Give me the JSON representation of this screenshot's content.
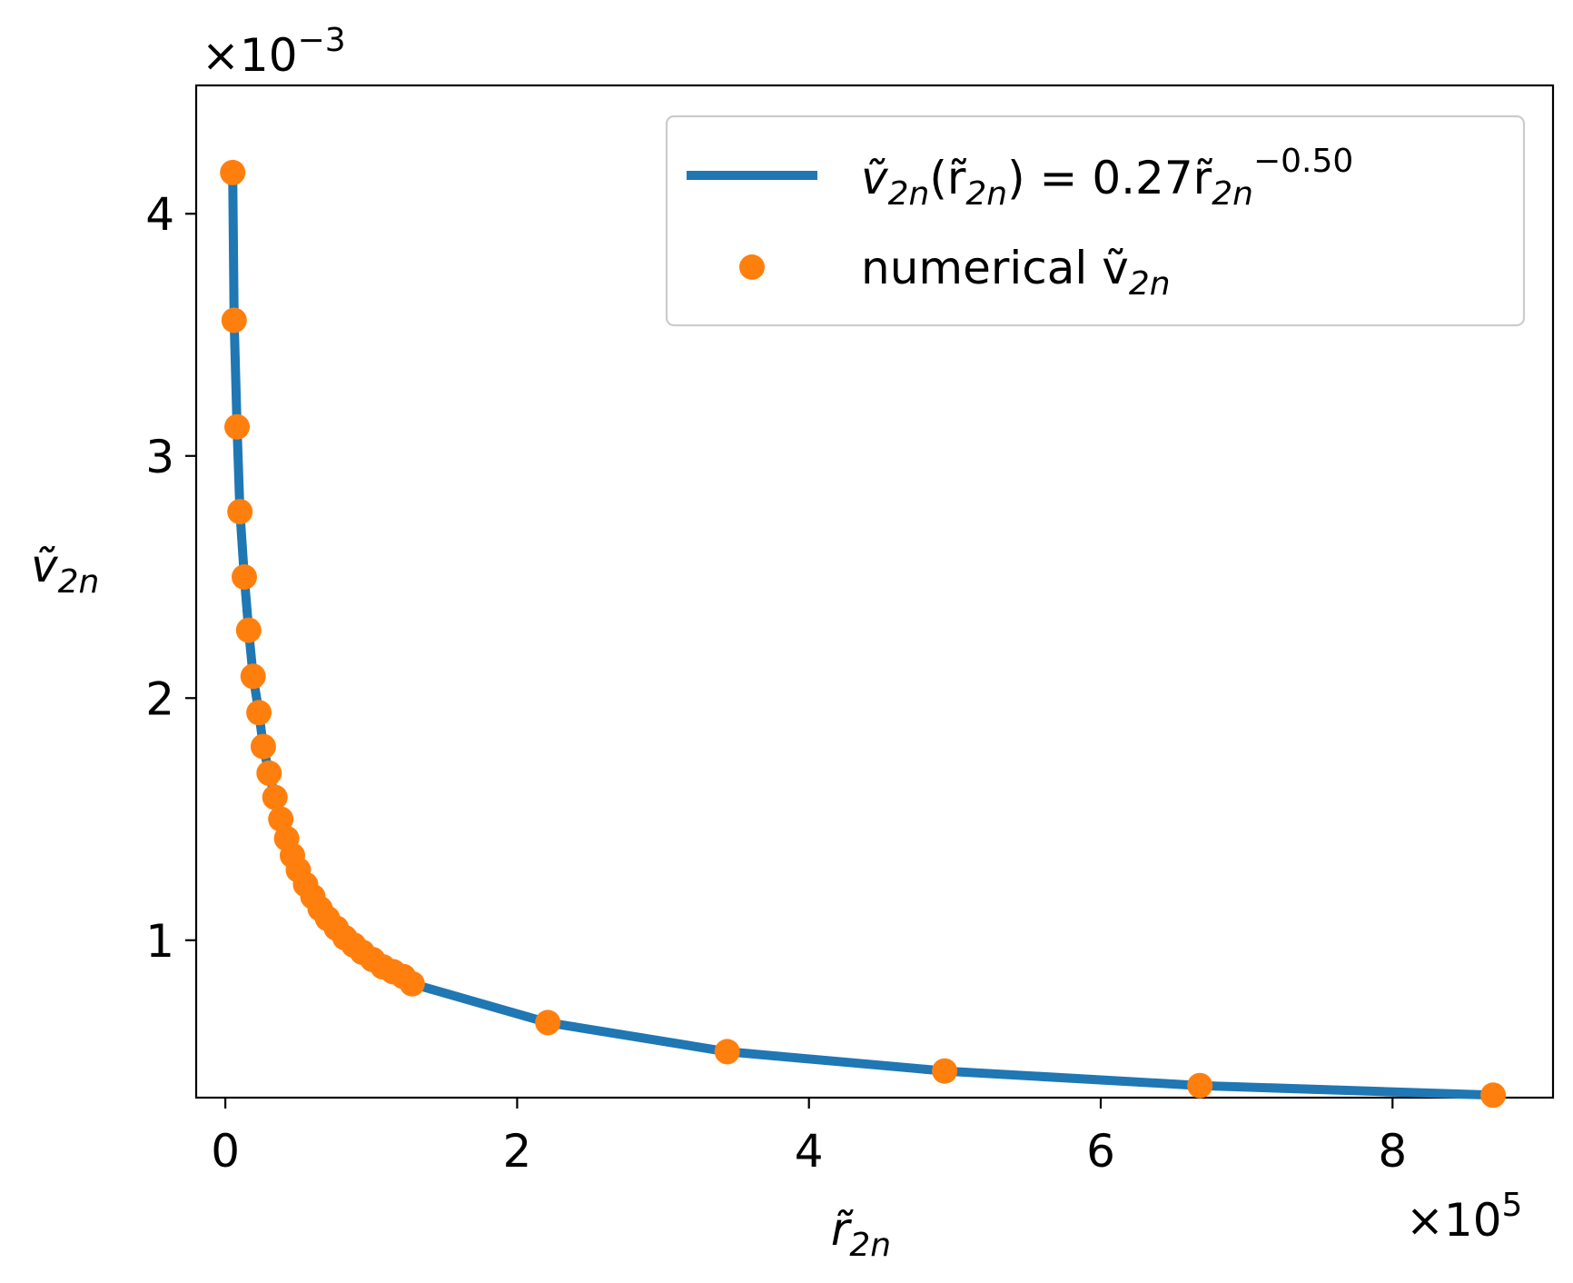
{
  "colors": {
    "fit_line": "#1f77b4",
    "points": "#ff7f0e",
    "axes": "#000000",
    "legend_border": "#cccccc",
    "background": "#ffffff"
  },
  "chart_data": {
    "type": "line",
    "title": "",
    "xlabel": "r̃",
    "xlabel_sub": "2n",
    "ylabel": "ṽ",
    "ylabel_sub": "2n",
    "x_offset_text": "×10",
    "x_offset_exp": "5",
    "y_offset_text": "×10",
    "y_offset_exp": "−3",
    "x_scale_factor": 100000,
    "y_scale_factor": 0.001,
    "xlim": [
      -0.2,
      9.1
    ],
    "ylim": [
      0.35,
      4.53
    ],
    "xticks": [
      0,
      2,
      4,
      6,
      8
    ],
    "xtick_labels": [
      "0",
      "2",
      "4",
      "6",
      "8"
    ],
    "yticks": [
      1,
      2,
      3,
      4
    ],
    "ytick_labels": [
      "1",
      "2",
      "3",
      "4"
    ],
    "grid": false,
    "legend_position": "top-right",
    "series": [
      {
        "name": "ṽ2n(r̃2n) = 0.27r̃2n−0.50",
        "legend_parts": [
          "ṽ",
          "2n",
          "(r̃",
          "2n",
          ") = 0.27r̃",
          "2n",
          "−0.50"
        ],
        "kind": "line",
        "color": "#1f77b4",
        "x": [
          0.05,
          0.06,
          0.08,
          0.1,
          0.13,
          0.16,
          0.19,
          0.23,
          0.26,
          0.3,
          0.34,
          0.38,
          0.42,
          0.46,
          0.5,
          0.55,
          0.6,
          0.65,
          0.7,
          0.76,
          0.82,
          0.88,
          0.94,
          1.01,
          1.08,
          1.15,
          1.22,
          1.28,
          2.21,
          3.44,
          4.93,
          6.68,
          8.69
        ],
        "y": [
          4.17,
          3.56,
          3.12,
          2.77,
          2.5,
          2.28,
          2.09,
          1.94,
          1.8,
          1.69,
          1.59,
          1.5,
          1.42,
          1.35,
          1.29,
          1.23,
          1.18,
          1.13,
          1.09,
          1.05,
          1.01,
          0.98,
          0.95,
          0.92,
          0.89,
          0.87,
          0.85,
          0.82,
          0.66,
          0.54,
          0.46,
          0.4,
          0.36
        ]
      },
      {
        "name": "numerical ṽ2n",
        "legend_parts": [
          "numerical ṽ",
          "2n"
        ],
        "kind": "scatter",
        "color": "#ff7f0e",
        "x": [
          0.05,
          0.06,
          0.08,
          0.1,
          0.13,
          0.16,
          0.19,
          0.23,
          0.26,
          0.3,
          0.34,
          0.38,
          0.42,
          0.46,
          0.5,
          0.55,
          0.6,
          0.65,
          0.7,
          0.76,
          0.82,
          0.88,
          0.94,
          1.01,
          1.08,
          1.15,
          1.22,
          1.28,
          2.21,
          3.44,
          4.93,
          6.68,
          8.69
        ],
        "y": [
          4.17,
          3.56,
          3.12,
          2.77,
          2.5,
          2.28,
          2.09,
          1.94,
          1.8,
          1.69,
          1.59,
          1.5,
          1.42,
          1.35,
          1.29,
          1.23,
          1.18,
          1.13,
          1.09,
          1.05,
          1.01,
          0.98,
          0.95,
          0.92,
          0.89,
          0.87,
          0.85,
          0.82,
          0.66,
          0.54,
          0.46,
          0.4,
          0.36
        ]
      }
    ]
  }
}
